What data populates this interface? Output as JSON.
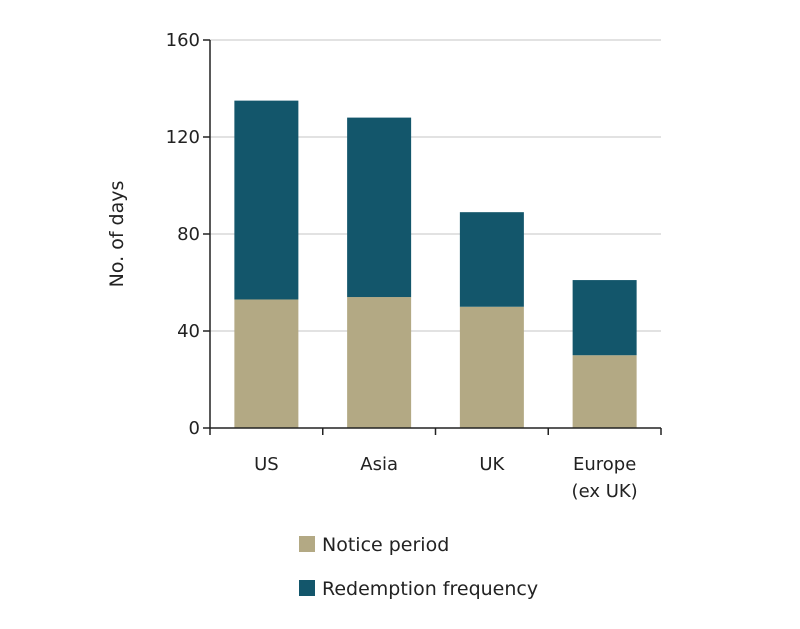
{
  "chart_data": {
    "type": "bar",
    "stacked": true,
    "title": "",
    "xlabel": "",
    "ylabel": "No. of days",
    "ylim": [
      0,
      160
    ],
    "yticks": [
      0,
      40,
      80,
      120,
      160
    ],
    "grid": true,
    "legend_position": "bottom",
    "categories": [
      [
        "US"
      ],
      [
        "Asia"
      ],
      [
        "UK"
      ],
      [
        "Europe",
        "(ex UK)"
      ]
    ],
    "series": [
      {
        "name": "Notice period",
        "color": "#b3a984",
        "values": [
          53,
          54,
          50,
          30
        ]
      },
      {
        "name": "Redemption frequency",
        "color": "#13566b",
        "values": [
          82,
          74,
          39,
          31
        ]
      }
    ]
  }
}
